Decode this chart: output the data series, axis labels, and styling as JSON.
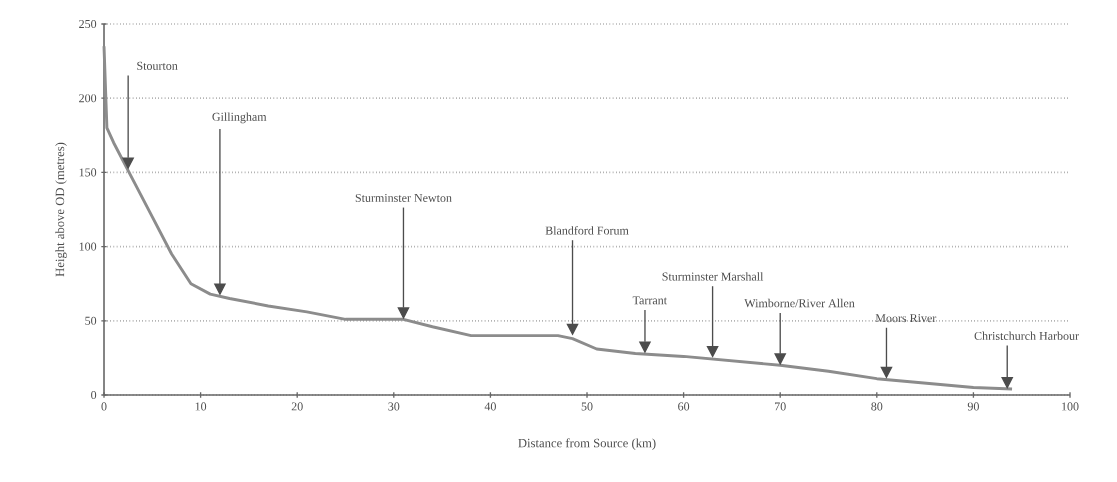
{
  "chart_data": {
    "type": "line",
    "xlabel": "Distance from Source (km)",
    "ylabel": "Height above OD (metres)",
    "x": [
      0,
      0.3,
      1,
      3,
      5,
      7,
      9,
      11,
      13,
      17,
      21,
      25,
      28,
      31,
      34,
      38,
      47,
      48.5,
      51,
      55,
      60,
      65,
      70,
      75,
      80,
      85,
      90,
      94
    ],
    "series": [
      {
        "color": "#8c8c8c",
        "values": [
          235,
          180,
          170,
          145,
          120,
          95,
          75,
          68,
          65,
          60,
          56,
          51,
          51,
          51,
          46,
          40,
          40,
          38,
          31,
          28,
          26,
          23,
          20,
          16,
          11,
          8,
          5,
          4
        ]
      }
    ],
    "xlim": [
      0,
      100
    ],
    "ylim": [
      0,
      250
    ],
    "xticks": [
      0,
      10,
      20,
      30,
      40,
      50,
      60,
      70,
      80,
      90,
      100
    ],
    "yticks": [
      0,
      50,
      100,
      150,
      200,
      250
    ],
    "grid": "y",
    "marker": "none",
    "line_style": "solid",
    "annotations": [
      "Stourton",
      "Gillingham",
      "Sturminster Newton",
      "Blandford Forum",
      "Tarrant",
      "Sturminster Marshall",
      "Wimborne/River Allen",
      "Moors River",
      "Christchurch Harbour"
    ]
  }
}
